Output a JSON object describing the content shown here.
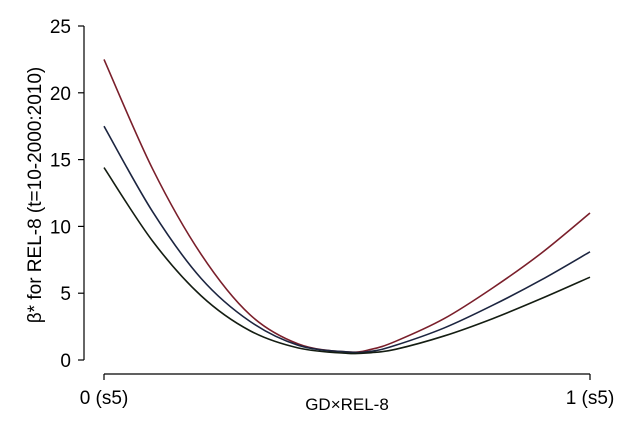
{
  "chart_data": {
    "type": "line",
    "xlabel": "GD×REL-8",
    "ylabel": "β* for REL-8 (t=10-2000:2010)",
    "xlim": [
      0,
      1
    ],
    "ylim": [
      0,
      25
    ],
    "x_ticks": [
      {
        "value": 0,
        "label": "0 (s5)"
      },
      {
        "value": 1,
        "label": "1 (s5)"
      }
    ],
    "y_ticks": [
      0,
      5,
      10,
      15,
      20,
      25
    ],
    "grid": false,
    "legend": "none",
    "series": [
      {
        "color": "#7a1f2b",
        "x": [
          0,
          0.1,
          0.2,
          0.3,
          0.4,
          0.5,
          0.55,
          0.6,
          0.7,
          0.8,
          0.9,
          1.0
        ],
        "y": [
          22.5,
          14.3,
          7.9,
          3.4,
          1.2,
          0.6,
          0.8,
          1.4,
          3.1,
          5.4,
          8.0,
          11.0
        ]
      },
      {
        "color": "#1c2540",
        "x": [
          0,
          0.1,
          0.2,
          0.3,
          0.4,
          0.5,
          0.55,
          0.6,
          0.7,
          0.8,
          0.9,
          1.0
        ],
        "y": [
          17.5,
          11.1,
          6.1,
          2.9,
          1.1,
          0.6,
          0.65,
          1.1,
          2.4,
          4.1,
          6.0,
          8.1
        ]
      },
      {
        "color": "#141d12",
        "x": [
          0,
          0.1,
          0.2,
          0.3,
          0.4,
          0.5,
          0.55,
          0.6,
          0.7,
          0.8,
          0.9,
          1.0
        ],
        "y": [
          14.4,
          8.9,
          4.8,
          2.2,
          0.9,
          0.5,
          0.55,
          0.8,
          1.8,
          3.1,
          4.6,
          6.2
        ]
      }
    ]
  }
}
